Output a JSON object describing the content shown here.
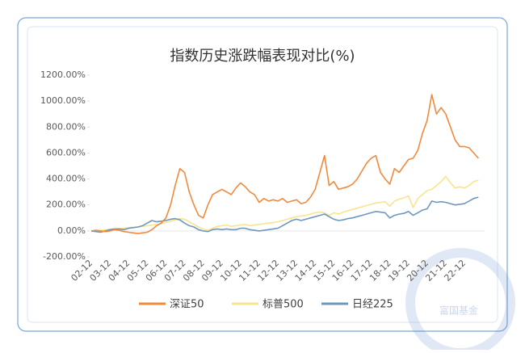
{
  "chart_data": {
    "type": "line",
    "title": "指数历史涨跌幅表现对比(%)",
    "watermark": "富国基金",
    "categories": [
      "02-12",
      null,
      null,
      null,
      "03-12",
      null,
      null,
      null,
      "04-12",
      null,
      null,
      null,
      "05-12",
      null,
      null,
      null,
      "06-12",
      null,
      null,
      null,
      "07-12",
      null,
      null,
      null,
      "08-12",
      null,
      null,
      null,
      "09-12",
      null,
      null,
      null,
      "10-12",
      null,
      null,
      null,
      "11-12",
      null,
      null,
      null,
      "12-12",
      null,
      null,
      null,
      "13-12",
      null,
      null,
      null,
      "14-12",
      null,
      null,
      null,
      "15-12",
      null,
      null,
      null,
      "16-12",
      null,
      null,
      null,
      "17-12",
      null,
      null,
      null,
      "18-12",
      null,
      null,
      null,
      "19-12",
      null,
      null,
      null,
      "20-12",
      null,
      null,
      null,
      "21-12",
      null,
      null,
      null,
      "22-12",
      null,
      null,
      null
    ],
    "series": [
      {
        "name": "深证50",
        "color": "#f08a3c",
        "values": [
          0,
          5,
          0,
          -5,
          0,
          10,
          5,
          -5,
          -10,
          -15,
          -20,
          -15,
          -10,
          10,
          40,
          60,
          100,
          200,
          350,
          480,
          450,
          300,
          200,
          120,
          100,
          200,
          280,
          300,
          320,
          300,
          280,
          330,
          370,
          340,
          300,
          280,
          220,
          250,
          230,
          240,
          230,
          250,
          220,
          230,
          240,
          210,
          220,
          260,
          320,
          450,
          580,
          350,
          380,
          320,
          330,
          340,
          360,
          400,
          460,
          520,
          560,
          580,
          450,
          400,
          360,
          480,
          450,
          500,
          550,
          560,
          620,
          750,
          850,
          1050,
          900,
          950,
          900,
          800,
          700,
          650,
          650,
          640,
          600,
          560
        ]
      },
      {
        "name": "标普500",
        "color": "#f7e58f",
        "values": [
          0,
          3,
          5,
          8,
          12,
          15,
          18,
          20,
          25,
          28,
          30,
          35,
          40,
          45,
          50,
          55,
          65,
          75,
          85,
          95,
          90,
          70,
          50,
          30,
          15,
          5,
          20,
          35,
          40,
          45,
          35,
          40,
          45,
          50,
          40,
          45,
          50,
          55,
          60,
          65,
          70,
          80,
          90,
          100,
          110,
          115,
          120,
          130,
          140,
          145,
          140,
          120,
          140,
          130,
          145,
          155,
          165,
          175,
          185,
          195,
          205,
          215,
          220,
          225,
          190,
          230,
          245,
          255,
          270,
          180,
          250,
          280,
          310,
          320,
          350,
          380,
          420,
          370,
          330,
          340,
          330,
          350,
          380,
          390
        ]
      },
      {
        "name": "日经225",
        "color": "#6f97bd",
        "values": [
          0,
          -5,
          -10,
          0,
          10,
          15,
          15,
          10,
          20,
          25,
          30,
          40,
          60,
          80,
          70,
          75,
          80,
          90,
          95,
          85,
          60,
          40,
          30,
          10,
          0,
          -5,
          10,
          15,
          10,
          15,
          10,
          10,
          20,
          20,
          10,
          5,
          0,
          5,
          10,
          15,
          20,
          40,
          60,
          80,
          90,
          80,
          90,
          100,
          110,
          120,
          130,
          110,
          90,
          80,
          85,
          95,
          100,
          110,
          120,
          130,
          140,
          150,
          145,
          140,
          100,
          120,
          130,
          135,
          150,
          120,
          140,
          160,
          170,
          230,
          220,
          225,
          220,
          210,
          200,
          205,
          210,
          230,
          250,
          260
        ]
      }
    ],
    "ylim": [
      -200,
      1200
    ],
    "yticks": [
      {
        "value": -200,
        "label": "-200.00%"
      },
      {
        "value": 0,
        "label": "0.00%"
      },
      {
        "value": 200,
        "label": "200.00%"
      },
      {
        "value": 400,
        "label": "400.00%"
      },
      {
        "value": 600,
        "label": "600.00%"
      },
      {
        "value": 800,
        "label": "800.00%"
      },
      {
        "value": 1000,
        "label": "1000.00%"
      },
      {
        "value": 1200,
        "label": "1200.00%"
      }
    ],
    "legend": "bottom"
  }
}
